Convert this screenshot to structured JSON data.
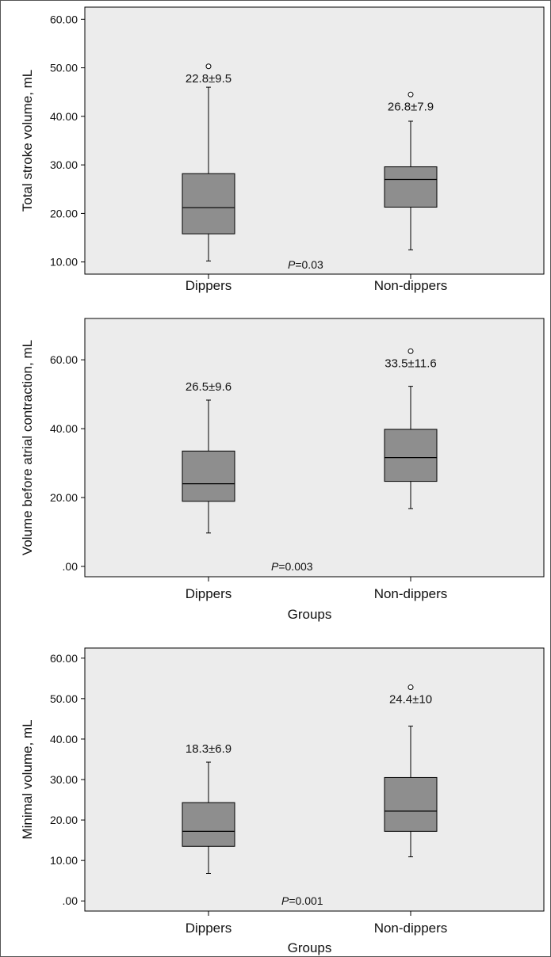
{
  "chart_data": [
    {
      "type": "boxplot",
      "ylabel": "Total stroke volume, mL",
      "xlabel": "",
      "ylim": [
        7.5,
        62.5
      ],
      "yticks": [
        10,
        20,
        30,
        40,
        50,
        60
      ],
      "ytick_labels": [
        "10.00",
        "20.00",
        "30.00",
        "40.00",
        "50.00",
        "60.00"
      ],
      "grid": false,
      "categories": [
        "Dippers",
        "Non-dippers"
      ],
      "boxes": [
        {
          "category": "Dippers",
          "whisker_low": 10.2,
          "q1": 15.8,
          "median": 21.2,
          "q3": 28.2,
          "whisker_high": 46.0,
          "outliers": [
            50.3
          ],
          "label": "22.8±9.5"
        },
        {
          "category": "Non-dippers",
          "whisker_low": 12.5,
          "q1": 21.3,
          "median": 27.0,
          "q3": 29.6,
          "whisker_high": 39.0,
          "outliers": [
            44.5
          ],
          "label": "26.8±7.9"
        }
      ],
      "p_value": {
        "prefix": "P",
        "text": "=0.03"
      }
    },
    {
      "type": "boxplot",
      "ylabel": "Volume before atrial contraction, mL",
      "xlabel": "Groups",
      "ylim": [
        -3,
        72
      ],
      "yticks": [
        0,
        20,
        40,
        60
      ],
      "ytick_labels": [
        ".00",
        "20.00",
        "40.00",
        "60.00"
      ],
      "grid": false,
      "categories": [
        "Dippers",
        "Non-dippers"
      ],
      "boxes": [
        {
          "category": "Dippers",
          "whisker_low": 9.7,
          "q1": 18.9,
          "median": 24.0,
          "q3": 33.5,
          "whisker_high": 48.3,
          "outliers": [],
          "label": "26.5±9.6"
        },
        {
          "category": "Non-dippers",
          "whisker_low": 16.8,
          "q1": 24.7,
          "median": 31.6,
          "q3": 39.8,
          "whisker_high": 52.3,
          "outliers": [
            62.5
          ],
          "label": "33.5±11.6"
        }
      ],
      "p_value": {
        "prefix": "P",
        "text": "=0.003"
      }
    },
    {
      "type": "boxplot",
      "ylabel": "Minimal volume, mL",
      "xlabel": "Groups",
      "ylim": [
        -2.5,
        62.5
      ],
      "yticks": [
        0,
        10,
        20,
        30,
        40,
        50,
        60
      ],
      "ytick_labels": [
        ".00",
        "10.00",
        "20.00",
        "30.00",
        "40.00",
        "50.00",
        "60.00"
      ],
      "grid": false,
      "categories": [
        "Dippers",
        "Non-dippers"
      ],
      "boxes": [
        {
          "category": "Dippers",
          "whisker_low": 6.8,
          "q1": 13.5,
          "median": 17.2,
          "q3": 24.3,
          "whisker_high": 34.3,
          "outliers": [],
          "label": "18.3±6.9"
        },
        {
          "category": "Non-dippers",
          "whisker_low": 10.9,
          "q1": 17.2,
          "median": 22.2,
          "q3": 30.5,
          "whisker_high": 43.2,
          "outliers": [
            52.8
          ],
          "label": "24.4±10"
        }
      ],
      "p_value": {
        "prefix": "P",
        "text": "=0.001"
      }
    }
  ],
  "colors": {
    "plot_background": "#ececec",
    "box_fill": "#8e8e8e",
    "stroke": "#000000",
    "border": "#555555"
  }
}
